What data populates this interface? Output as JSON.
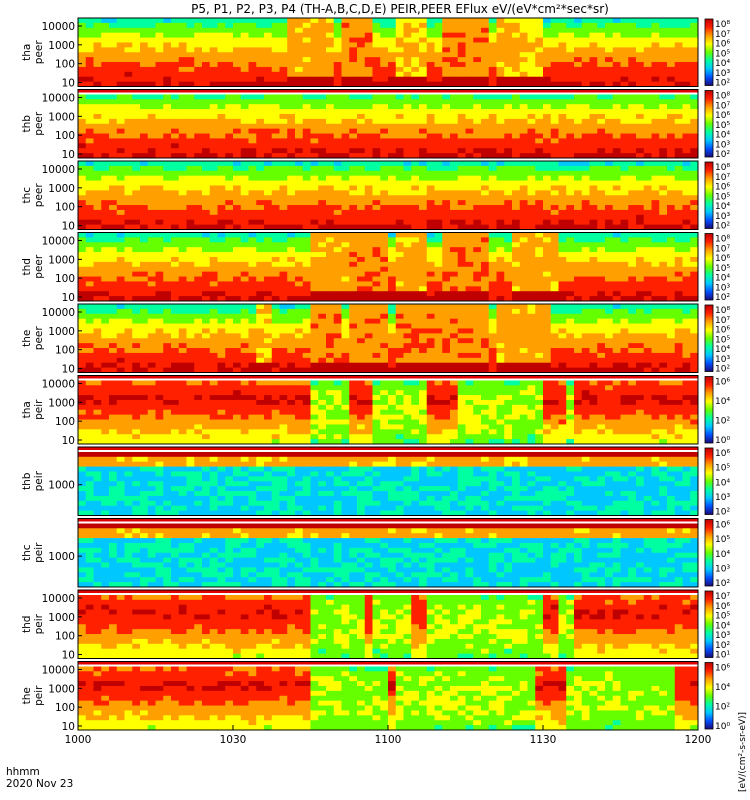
{
  "chart_data": {
    "type": "heatmap",
    "title": "P5, P1, P2, P3, P4 (TH-A,B,C,D,E) PEIR,PEER EFlux eV/(eV*cm²*sec*sr)",
    "footer": {
      "time_label": "hhmm",
      "date": "2020 Nov 23"
    },
    "xlabel": "hhmm",
    "x_ticks": [
      "1000",
      "1030",
      "1100",
      "1130",
      "1200"
    ],
    "xlim_minutes": [
      0,
      120
    ],
    "colorbar_text": "[eV/(cm²-s-sr-eV)]",
    "colorbar_ticks": [
      "10⁵",
      "10⁴",
      "10³",
      "10²"
    ],
    "colorbar_ticks_alt": [
      "10⁶",
      "10⁵",
      "10⁴",
      "10³",
      "10²",
      "10¹"
    ],
    "palette": [
      "#1a0a7a",
      "#0050ff",
      "#00c8ff",
      "#00ffa0",
      "#66ff00",
      "#ffff00",
      "#ffa000",
      "#ff2000",
      "#c00000"
    ],
    "panels": [
      {
        "id": "tha_peer",
        "label1": "tha",
        "label2": "peer",
        "species": "electron",
        "yticks": [
          "10000",
          "1000",
          "100",
          "10"
        ],
        "gap_top": false,
        "cb_ticks": [
          "10⁸",
          "10⁷",
          "10⁶",
          "10⁵",
          "10⁴",
          "10³",
          "10²"
        ],
        "events": [
          {
            "start": 40,
            "end": 49,
            "level": 0.75
          },
          {
            "start": 51,
            "end": 57,
            "level": 0.8
          },
          {
            "start": 62,
            "end": 67,
            "level": 0.7
          },
          {
            "start": 70,
            "end": 80,
            "level": 0.8
          },
          {
            "start": 81,
            "end": 85,
            "level": 0.75
          },
          {
            "start": 86,
            "end": 90,
            "level": 0.7
          }
        ]
      },
      {
        "id": "thb_peer",
        "label1": "thb",
        "label2": "peer",
        "species": "electron",
        "yticks": [
          "10000",
          "1000",
          "100",
          "10"
        ],
        "gap_top": true,
        "cb_ticks": [
          "10⁸",
          "10⁷",
          "10⁶",
          "10⁵",
          "10⁴",
          "10³",
          "10²"
        ],
        "events": []
      },
      {
        "id": "thc_peer",
        "label1": "thc",
        "label2": "peer",
        "species": "electron",
        "yticks": [
          "10000",
          "1000",
          "100",
          "10"
        ],
        "gap_top": false,
        "cb_ticks": [
          "10⁸",
          "10⁷",
          "10⁶",
          "10⁵",
          "10⁴",
          "10³",
          "10²"
        ],
        "events": []
      },
      {
        "id": "thd_peer",
        "label1": "thd",
        "label2": "peer",
        "species": "electron",
        "yticks": [
          "10000",
          "1000",
          "100",
          "10"
        ],
        "gap_top": false,
        "cb_ticks": [
          "10⁸",
          "10⁷",
          "10⁶",
          "10⁵",
          "10⁴",
          "10³",
          "10²"
        ],
        "events": [
          {
            "start": 45,
            "end": 52,
            "level": 0.75
          },
          {
            "start": 53,
            "end": 60,
            "level": 0.8
          },
          {
            "start": 62,
            "end": 68,
            "level": 0.75
          },
          {
            "start": 70,
            "end": 80,
            "level": 0.8
          },
          {
            "start": 84,
            "end": 93,
            "level": 0.75
          }
        ]
      },
      {
        "id": "the_peer",
        "label1": "the",
        "label2": "peer",
        "species": "electron",
        "yticks": [
          "10000",
          "1000",
          "100",
          "10"
        ],
        "gap_top": false,
        "cb_ticks": [
          "10⁸",
          "10⁷",
          "10⁶",
          "10⁵",
          "10⁴",
          "10³",
          "10²"
        ],
        "events": [
          {
            "start": 34,
            "end": 37,
            "level": 0.7
          },
          {
            "start": 45,
            "end": 51,
            "level": 0.8
          },
          {
            "start": 52,
            "end": 60,
            "level": 0.8
          },
          {
            "start": 61,
            "end": 70,
            "level": 0.8
          },
          {
            "start": 71,
            "end": 80,
            "level": 0.8
          },
          {
            "start": 81,
            "end": 92,
            "level": 0.75
          }
        ]
      },
      {
        "id": "tha_peir",
        "label1": "tha",
        "label2": "peir",
        "species": "ion",
        "yticks": [
          "10000",
          "1000",
          "100",
          "10"
        ],
        "gap_top": true,
        "cb_ticks": [
          "10⁶",
          "10⁴",
          "10²",
          "10⁰"
        ],
        "quiet": [
          {
            "start": 45,
            "end": 52
          },
          {
            "start": 57,
            "end": 67
          },
          {
            "start": 74,
            "end": 90
          },
          {
            "start": 94,
            "end": 96
          }
        ]
      },
      {
        "id": "thb_peir",
        "label1": "thb",
        "label2": "peir",
        "species": "ion_band",
        "yticks": [
          "1000"
        ],
        "gap_top": true,
        "cb_ticks": [
          "10⁶",
          "10⁵",
          "10⁴",
          "10³",
          "10²"
        ]
      },
      {
        "id": "thc_peir",
        "label1": "thc",
        "label2": "peir",
        "species": "ion_band",
        "yticks": [
          "1000"
        ],
        "gap_top": true,
        "cb_ticks": [
          "10⁶",
          "10⁵",
          "10⁴",
          "10³",
          "10²"
        ]
      },
      {
        "id": "thd_peir",
        "label1": "thd",
        "label2": "peir",
        "species": "ion",
        "yticks": [
          "10000",
          "1000",
          "100",
          "10"
        ],
        "gap_top": true,
        "cb_ticks": [
          "10⁷",
          "10⁶",
          "10⁵",
          "10⁴",
          "10³",
          "10²",
          "10¹"
        ],
        "quiet": [
          {
            "start": 45,
            "end": 55
          },
          {
            "start": 57,
            "end": 65
          },
          {
            "start": 68,
            "end": 90
          },
          {
            "start": 93,
            "end": 96
          }
        ]
      },
      {
        "id": "the_peir",
        "label1": "the",
        "label2": "peir",
        "species": "ion",
        "yticks": [
          "10000",
          "1000",
          "100",
          "10"
        ],
        "gap_top": true,
        "cb_ticks": [
          "10⁶",
          "10⁴",
          "10²",
          "10⁰"
        ],
        "quiet": [
          {
            "start": 45,
            "end": 60
          },
          {
            "start": 62,
            "end": 88
          },
          {
            "start": 94,
            "end": 116
          }
        ]
      }
    ]
  }
}
